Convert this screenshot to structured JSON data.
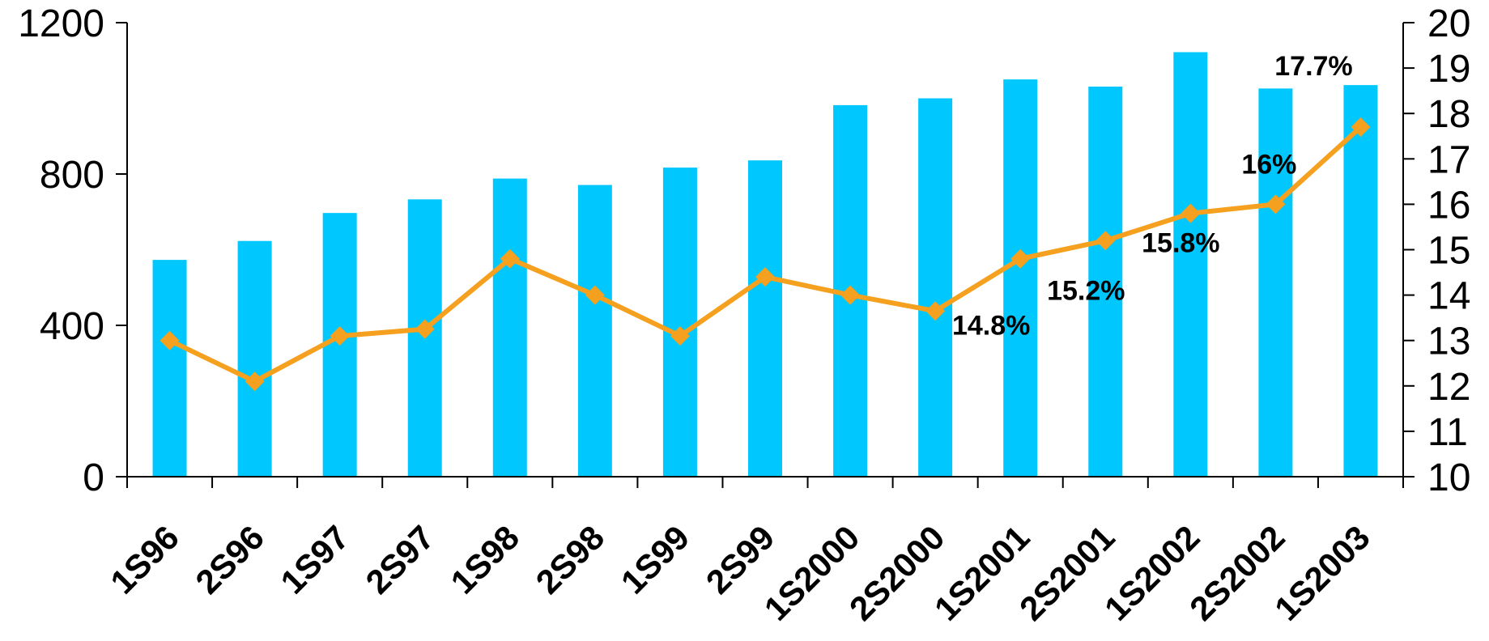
{
  "chart_data": {
    "type": "bar",
    "categories": [
      "1S96",
      "2S96",
      "1S97",
      "2S97",
      "1S98",
      "2S98",
      "1S99",
      "2S99",
      "1S2000",
      "2S2000",
      "1S2001",
      "2S2001",
      "1S2002",
      "2S2002",
      "1S2003"
    ],
    "series": [
      {
        "type": "bar",
        "axis": "left",
        "values": [
          573,
          623,
          697,
          733,
          788,
          771,
          817,
          836,
          982,
          1000,
          1050,
          1031,
          1122,
          1026,
          1035
        ]
      },
      {
        "type": "line",
        "axis": "right",
        "values": [
          13.0,
          12.1,
          13.1,
          13.25,
          14.8,
          14.0,
          13.1,
          14.4,
          14.0,
          13.65,
          14.8,
          15.2,
          15.8,
          16.0,
          17.7
        ]
      }
    ],
    "data_labels": [
      {
        "index": 10,
        "text": "14.8%"
      },
      {
        "index": 11,
        "text": "15.2%"
      },
      {
        "index": 12,
        "text": "15.8%"
      },
      {
        "index": 13,
        "text": "16%"
      },
      {
        "index": 14,
        "text": "17.7%"
      }
    ],
    "left_axis": {
      "min": 0,
      "max": 1200,
      "ticks": [
        0,
        400,
        800,
        1200
      ]
    },
    "right_axis": {
      "min": 10,
      "max": 20,
      "ticks": [
        10,
        11,
        12,
        13,
        14,
        15,
        16,
        17,
        18,
        19,
        20
      ]
    },
    "grid": false,
    "colors": {
      "bar": "#00C8FF",
      "line": "#F5A01E",
      "axis": "#000000"
    }
  }
}
